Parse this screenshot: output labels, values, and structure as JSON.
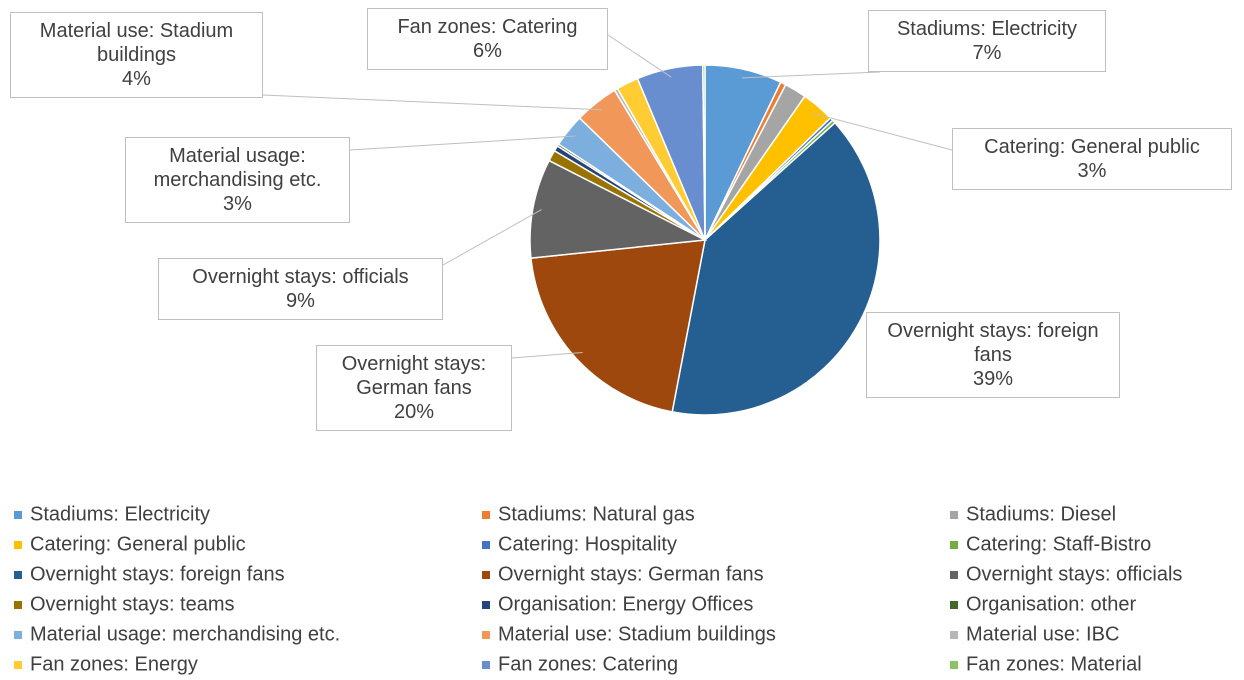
{
  "chart_data": {
    "type": "pie",
    "categories": [
      "Stadiums: Electricity",
      "Stadiums: Natural gas",
      "Stadiums: Diesel",
      "Catering: General public",
      "Catering: Hospitality",
      "Catering: Staff-Bistro",
      "Overnight stays: foreign fans",
      "Overnight stays: German fans",
      "Overnight stays: officials",
      "Overnight stays: teams",
      "Organisation: Energy Offices",
      "Organisation: other",
      "Material usage: merchandising etc.",
      "Material use: Stadium buildings",
      "Material use: IBC",
      "Fan zones: Energy",
      "Fan zones: Catering",
      "Fan zones: Material"
    ],
    "values": [
      7,
      0.5,
      2,
      3,
      0.3,
      0.3,
      39,
      20,
      9,
      1,
      0.5,
      0.2,
      3,
      4,
      0.3,
      2,
      6,
      0.2
    ],
    "value_labels": [
      "7%",
      null,
      null,
      "3%",
      null,
      null,
      "39%",
      "20%",
      "9%",
      null,
      null,
      null,
      "3%",
      "4%",
      null,
      null,
      "6%",
      null
    ],
    "colors": [
      "#5b9bd5",
      "#ed7d31",
      "#a5a5a5",
      "#ffc000",
      "#4472c4",
      "#70ad47",
      "#255e91",
      "#9e480e",
      "#636363",
      "#997300",
      "#264478",
      "#43682b",
      "#7cafdd",
      "#f1975a",
      "#b7b7b7",
      "#ffcd33",
      "#698ed0",
      "#8cc168"
    ],
    "legend": "bottom"
  }
}
